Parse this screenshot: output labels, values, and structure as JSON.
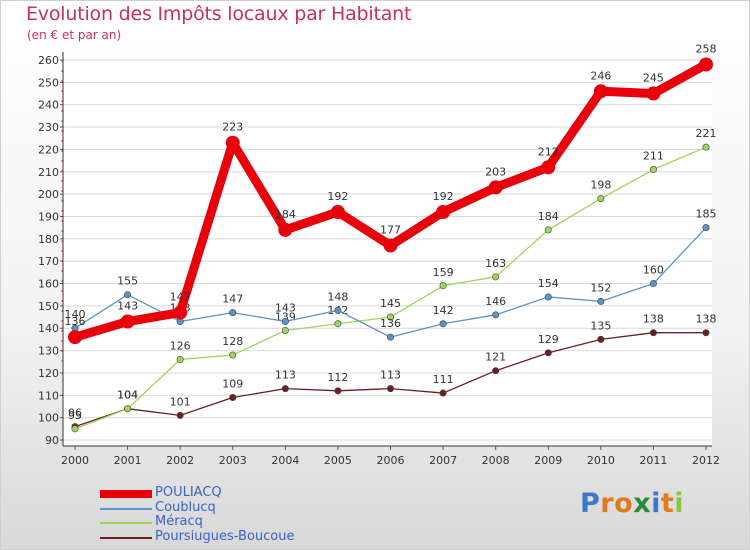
{
  "chart_data": {
    "type": "line",
    "title": "Evolution des Impôts locaux par Habitant",
    "subtitle": "(en € et par an)",
    "x": [
      "2000",
      "2001",
      "2002",
      "2003",
      "2004",
      "2005",
      "2006",
      "2007",
      "2008",
      "2009",
      "2010",
      "2011",
      "2012"
    ],
    "ylim": [
      90,
      260
    ],
    "yticks": [
      90,
      100,
      110,
      120,
      130,
      140,
      150,
      160,
      170,
      180,
      190,
      200,
      210,
      220,
      230,
      240,
      250,
      260
    ],
    "grid": "horizontal",
    "legend_position": "bottom-left",
    "series": [
      {
        "name": "POULIACQ",
        "color": "#e8000b",
        "values": [
          136,
          143,
          147,
          223,
          184,
          192,
          177,
          192,
          203,
          212,
          246,
          245,
          258
        ]
      },
      {
        "name": "Coublucq",
        "color": "#5a94c8",
        "values": [
          140,
          155,
          143,
          147,
          143,
          148,
          136,
          142,
          146,
          154,
          152,
          160,
          185
        ]
      },
      {
        "name": "Méracq",
        "color": "#9ed55a",
        "values": [
          95,
          104,
          126,
          128,
          139,
          142,
          145,
          159,
          163,
          184,
          198,
          211,
          221
        ]
      },
      {
        "name": "Poursiugues-Boucoue",
        "color": "#6b2020",
        "values": [
          96,
          104,
          101,
          109,
          113,
          112,
          113,
          111,
          121,
          129,
          135,
          138,
          138
        ]
      }
    ]
  },
  "logo": {
    "letters": [
      "P",
      "r",
      "o",
      "x",
      "i",
      "t",
      "i"
    ],
    "colors": [
      "#3d78c8",
      "#e07a1e",
      "#e07a1e",
      "#2a8a3c",
      "#3d78c8",
      "#e07a1e",
      "#8cc63f"
    ]
  }
}
